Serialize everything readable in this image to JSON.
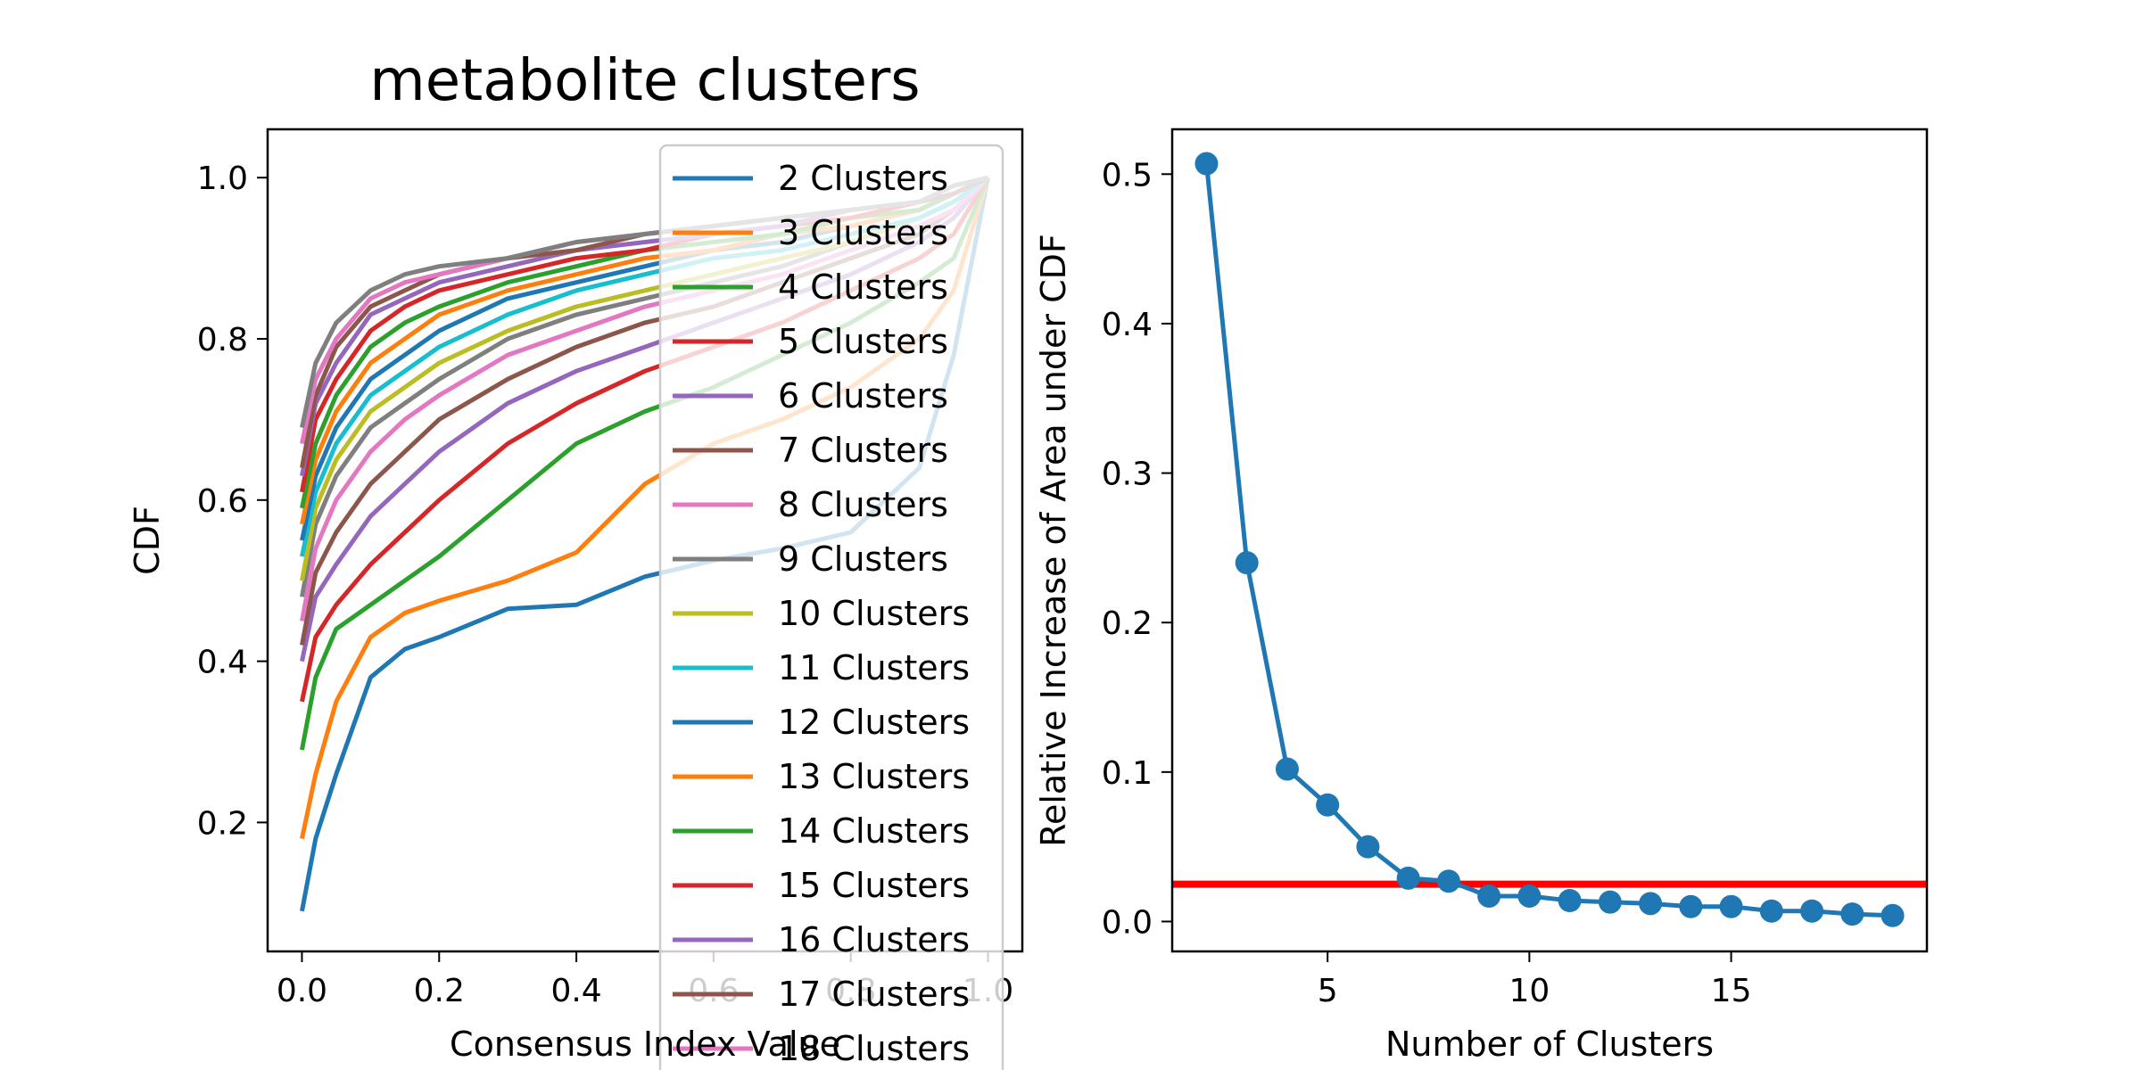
{
  "chart_data": [
    {
      "type": "line",
      "title": "metabolite clusters",
      "xlabel": "Consensus Index Value",
      "ylabel": "CDF",
      "xlim": [
        -0.05,
        1.05
      ],
      "ylim": [
        0.04,
        1.06
      ],
      "xticks": [
        0.0,
        0.2,
        0.4,
        0.6,
        0.8,
        1.0
      ],
      "xtick_labels": [
        "0.0",
        "0.2",
        "0.4",
        "0.6",
        "0.8",
        "1.0"
      ],
      "yticks": [
        0.2,
        0.4,
        0.6,
        0.8,
        1.0
      ],
      "ytick_labels": [
        "0.2",
        "0.4",
        "0.6",
        "0.8",
        "1.0"
      ],
      "grid": false,
      "legend": "upper right",
      "x": [
        0.0,
        0.02,
        0.05,
        0.1,
        0.15,
        0.2,
        0.3,
        0.4,
        0.5,
        0.6,
        0.7,
        0.8,
        0.9,
        0.95,
        1.0
      ],
      "series": [
        {
          "name": "2 Clusters",
          "color": "#1f77b4",
          "values": [
            0.09,
            0.18,
            0.26,
            0.38,
            0.415,
            0.43,
            0.465,
            0.47,
            0.505,
            0.525,
            0.54,
            0.56,
            0.64,
            0.78,
            1.0
          ]
        },
        {
          "name": "3 Clusters",
          "color": "#ff7f0e",
          "values": [
            0.18,
            0.26,
            0.35,
            0.43,
            0.46,
            0.475,
            0.5,
            0.535,
            0.62,
            0.67,
            0.7,
            0.74,
            0.8,
            0.86,
            1.0
          ]
        },
        {
          "name": "4 Clusters",
          "color": "#2ca02c",
          "values": [
            0.29,
            0.38,
            0.44,
            0.47,
            0.5,
            0.53,
            0.6,
            0.67,
            0.71,
            0.74,
            0.78,
            0.82,
            0.87,
            0.9,
            1.0
          ]
        },
        {
          "name": "5 Clusters",
          "color": "#d62728",
          "values": [
            0.35,
            0.43,
            0.47,
            0.52,
            0.56,
            0.6,
            0.67,
            0.72,
            0.76,
            0.79,
            0.82,
            0.86,
            0.9,
            0.93,
            1.0
          ]
        },
        {
          "name": "6 Clusters",
          "color": "#9467bd",
          "values": [
            0.4,
            0.48,
            0.52,
            0.58,
            0.62,
            0.66,
            0.72,
            0.76,
            0.79,
            0.82,
            0.85,
            0.88,
            0.92,
            0.95,
            1.0
          ]
        },
        {
          "name": "7 Clusters",
          "color": "#8c564b",
          "values": [
            0.42,
            0.51,
            0.56,
            0.62,
            0.66,
            0.7,
            0.75,
            0.79,
            0.82,
            0.84,
            0.87,
            0.9,
            0.93,
            0.96,
            1.0
          ]
        },
        {
          "name": "8 Clusters",
          "color": "#e377c2",
          "values": [
            0.45,
            0.54,
            0.6,
            0.66,
            0.7,
            0.73,
            0.78,
            0.81,
            0.84,
            0.86,
            0.88,
            0.91,
            0.94,
            0.96,
            1.0
          ]
        },
        {
          "name": "9 Clusters",
          "color": "#7f7f7f",
          "values": [
            0.48,
            0.57,
            0.63,
            0.69,
            0.72,
            0.75,
            0.8,
            0.83,
            0.85,
            0.87,
            0.89,
            0.92,
            0.95,
            0.97,
            1.0
          ]
        },
        {
          "name": "10 Clusters",
          "color": "#bcbd22",
          "values": [
            0.5,
            0.59,
            0.65,
            0.71,
            0.74,
            0.77,
            0.81,
            0.84,
            0.86,
            0.88,
            0.9,
            0.92,
            0.95,
            0.97,
            1.0
          ]
        },
        {
          "name": "11 Clusters",
          "color": "#17becf",
          "values": [
            0.53,
            0.61,
            0.67,
            0.73,
            0.76,
            0.79,
            0.83,
            0.86,
            0.88,
            0.9,
            0.91,
            0.93,
            0.95,
            0.97,
            1.0
          ]
        },
        {
          "name": "12 Clusters",
          "color": "#1f77b4",
          "values": [
            0.55,
            0.63,
            0.69,
            0.75,
            0.78,
            0.81,
            0.85,
            0.87,
            0.89,
            0.91,
            0.92,
            0.94,
            0.96,
            0.98,
            1.0
          ]
        },
        {
          "name": "13 Clusters",
          "color": "#ff7f0e",
          "values": [
            0.57,
            0.65,
            0.71,
            0.77,
            0.8,
            0.83,
            0.86,
            0.88,
            0.9,
            0.91,
            0.93,
            0.94,
            0.96,
            0.98,
            1.0
          ]
        },
        {
          "name": "14 Clusters",
          "color": "#2ca02c",
          "values": [
            0.59,
            0.67,
            0.73,
            0.79,
            0.82,
            0.84,
            0.87,
            0.89,
            0.91,
            0.92,
            0.93,
            0.95,
            0.96,
            0.98,
            1.0
          ]
        },
        {
          "name": "15 Clusters",
          "color": "#d62728",
          "values": [
            0.61,
            0.7,
            0.75,
            0.81,
            0.84,
            0.86,
            0.88,
            0.9,
            0.91,
            0.93,
            0.94,
            0.95,
            0.97,
            0.98,
            1.0
          ]
        },
        {
          "name": "16 Clusters",
          "color": "#9467bd",
          "values": [
            0.63,
            0.72,
            0.77,
            0.83,
            0.85,
            0.87,
            0.89,
            0.91,
            0.92,
            0.93,
            0.94,
            0.96,
            0.97,
            0.98,
            1.0
          ]
        },
        {
          "name": "17 Clusters",
          "color": "#8c564b",
          "values": [
            0.64,
            0.73,
            0.79,
            0.84,
            0.86,
            0.88,
            0.9,
            0.91,
            0.93,
            0.94,
            0.95,
            0.96,
            0.97,
            0.98,
            1.0
          ]
        },
        {
          "name": "18 Clusters",
          "color": "#e377c2",
          "values": [
            0.67,
            0.75,
            0.8,
            0.85,
            0.87,
            0.88,
            0.9,
            0.92,
            0.93,
            0.94,
            0.95,
            0.96,
            0.97,
            0.99,
            1.0
          ]
        },
        {
          "name": "",
          "color": "#7f7f7f",
          "values": [
            0.69,
            0.77,
            0.82,
            0.86,
            0.88,
            0.89,
            0.9,
            0.92,
            0.93,
            0.94,
            0.95,
            0.96,
            0.97,
            0.99,
            1.0
          ]
        }
      ]
    },
    {
      "type": "line",
      "title": "",
      "xlabel": "Number of Clusters",
      "ylabel": "Relative Increase of Area under CDF",
      "xlim": [
        1.15,
        19.85
      ],
      "ylim": [
        -0.02,
        0.53
      ],
      "xticks": [
        5,
        10,
        15
      ],
      "xtick_labels": [
        "5",
        "10",
        "15"
      ],
      "yticks": [
        0.0,
        0.1,
        0.2,
        0.3,
        0.4,
        0.5
      ],
      "ytick_labels": [
        "0.0",
        "0.1",
        "0.2",
        "0.3",
        "0.4",
        "0.5"
      ],
      "grid": false,
      "x": [
        2,
        3,
        4,
        5,
        6,
        7,
        8,
        9,
        10,
        11,
        12,
        13,
        14,
        15,
        16,
        17,
        18,
        19
      ],
      "series": [
        {
          "name": "",
          "color": "#1f77b4",
          "values": [
            0.507,
            0.24,
            0.102,
            0.078,
            0.05,
            0.029,
            0.027,
            0.017,
            0.017,
            0.014,
            0.013,
            0.012,
            0.01,
            0.01,
            0.007,
            0.007,
            0.005,
            0.004
          ]
        }
      ],
      "threshold": {
        "y": 0.025,
        "color": "#ff0000"
      }
    }
  ]
}
